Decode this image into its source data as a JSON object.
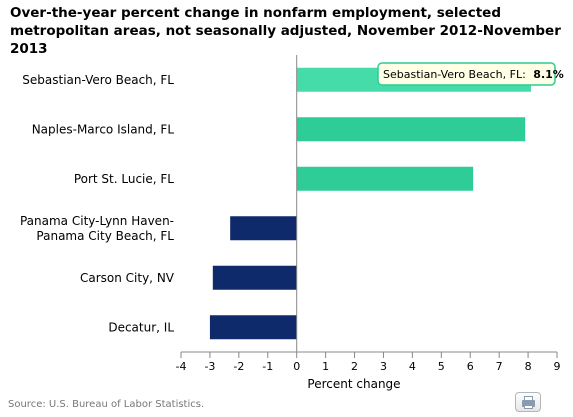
{
  "chart_data": {
    "type": "bar",
    "orientation": "horizontal",
    "title": "Over-the-year percent change in nonfarm employment, selected metropolitan areas, not seasonally adjusted, November 2012-November 2013",
    "xlabel": "Percent change",
    "ylabel": "",
    "xlim": [
      -4,
      9
    ],
    "xticks": [
      "-4",
      "-3",
      "-2",
      "-1",
      "0",
      "1",
      "2",
      "3",
      "4",
      "5",
      "6",
      "7",
      "8",
      "9"
    ],
    "categories": [
      [
        "Sebastian-Vero Beach, FL"
      ],
      [
        "Naples-Marco Island, FL"
      ],
      [
        "Port St. Lucie, FL"
      ],
      [
        "Panama City-Lynn Haven-",
        "Panama City Beach, FL"
      ],
      [
        "Carson City, NV"
      ],
      [
        "Decatur, IL"
      ]
    ],
    "values": [
      8.1,
      7.9,
      6.1,
      -2.3,
      -2.9,
      -3.0
    ],
    "colors": {
      "positive": "#2ECC96",
      "positive_highlight": "#46DCAA",
      "negative": "#0E2A6B",
      "axis": "#888888",
      "tooltip_border": "#2ECC96",
      "tooltip_bg": "#FFFFE6"
    },
    "tooltip": {
      "category": "Sebastian-Vero Beach, FL:",
      "value": "8.1%"
    }
  },
  "source": "Source: U.S. Bureau of Labor Statistics.",
  "print_icon": "printer-icon"
}
